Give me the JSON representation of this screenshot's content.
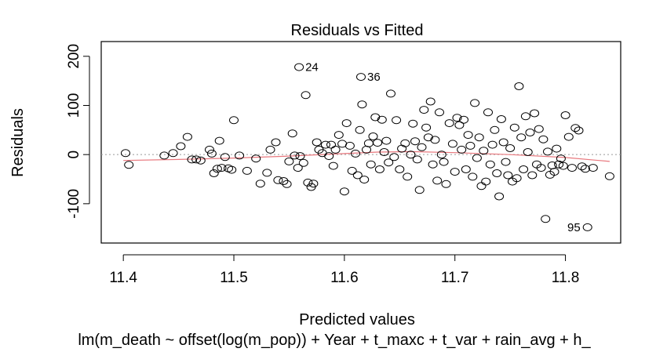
{
  "chart_data": {
    "type": "scatter",
    "title": "Residuals vs Fitted",
    "xlabel": "Predicted values",
    "ylabel": "Residuals",
    "subtitle": "lm(m_death ~ offset(log(m_pop)) + Year + t_maxc + t_var + rain_avg + h_",
    "xlim": [
      11.38,
      11.85
    ],
    "ylim": [
      -180,
      230
    ],
    "x_ticks": [
      "11.4",
      "11.5",
      "11.6",
      "11.7",
      "11.8"
    ],
    "x_tick_values": [
      11.4,
      11.5,
      11.6,
      11.7,
      11.8
    ],
    "y_ticks": [
      "-100",
      "0",
      "100",
      "200"
    ],
    "y_tick_values": [
      -100,
      0,
      100,
      200
    ],
    "reference_line": 0,
    "smoother": {
      "color": "#e8777d",
      "x": [
        11.4,
        11.45,
        11.5,
        11.55,
        11.6,
        11.63,
        11.66,
        11.7,
        11.75,
        11.8,
        11.84
      ],
      "y": [
        -12,
        -10,
        -7,
        -3,
        2,
        5,
        6,
        4,
        0,
        -6,
        -14
      ]
    },
    "labeled_points": [
      {
        "label": "24",
        "x": 11.559,
        "y": 178
      },
      {
        "label": "36",
        "x": 11.615,
        "y": 158
      },
      {
        "label": "95",
        "x": 11.82,
        "y": -148
      }
    ],
    "points": [
      [
        11.402,
        3
      ],
      [
        11.405,
        -21
      ],
      [
        11.437,
        -2
      ],
      [
        11.445,
        3
      ],
      [
        11.452,
        17
      ],
      [
        11.458,
        36
      ],
      [
        11.462,
        -10
      ],
      [
        11.466,
        -10
      ],
      [
        11.47,
        -12
      ],
      [
        11.478,
        10
      ],
      [
        11.48,
        2
      ],
      [
        11.482,
        -38
      ],
      [
        11.485,
        -29
      ],
      [
        11.487,
        28
      ],
      [
        11.489,
        -27
      ],
      [
        11.492,
        -5
      ],
      [
        11.495,
        -28
      ],
      [
        11.498,
        -31
      ],
      [
        11.5,
        70
      ],
      [
        11.505,
        -2
      ],
      [
        11.512,
        -33
      ],
      [
        11.52,
        -8
      ],
      [
        11.524,
        -59
      ],
      [
        11.53,
        -37
      ],
      [
        11.533,
        10
      ],
      [
        11.538,
        25
      ],
      [
        11.54,
        -52
      ],
      [
        11.545,
        -54
      ],
      [
        11.548,
        -60
      ],
      [
        11.55,
        -14
      ],
      [
        11.553,
        43
      ],
      [
        11.555,
        -2
      ],
      [
        11.558,
        -27
      ],
      [
        11.56,
        -3
      ],
      [
        11.563,
        -17
      ],
      [
        11.565,
        121
      ],
      [
        11.567,
        -57
      ],
      [
        11.57,
        -66
      ],
      [
        11.572,
        -59
      ],
      [
        11.575,
        25
      ],
      [
        11.577,
        10
      ],
      [
        11.58,
        3
      ],
      [
        11.583,
        20
      ],
      [
        11.586,
        -3
      ],
      [
        11.588,
        20
      ],
      [
        11.59,
        -23
      ],
      [
        11.592,
        10
      ],
      [
        11.595,
        40
      ],
      [
        11.598,
        22
      ],
      [
        11.6,
        -75
      ],
      [
        11.602,
        64
      ],
      [
        11.605,
        18
      ],
      [
        11.607,
        -33
      ],
      [
        11.61,
        2
      ],
      [
        11.612,
        -42
      ],
      [
        11.614,
        50
      ],
      [
        11.616,
        102
      ],
      [
        11.618,
        -51
      ],
      [
        11.62,
        10
      ],
      [
        11.622,
        23
      ],
      [
        11.624,
        -20
      ],
      [
        11.626,
        37
      ],
      [
        11.628,
        76
      ],
      [
        11.63,
        24
      ],
      [
        11.632,
        -30
      ],
      [
        11.634,
        71
      ],
      [
        11.636,
        5
      ],
      [
        11.638,
        28
      ],
      [
        11.64,
        -16
      ],
      [
        11.642,
        124
      ],
      [
        11.645,
        -5
      ],
      [
        11.647,
        70
      ],
      [
        11.65,
        -30
      ],
      [
        11.652,
        12
      ],
      [
        11.655,
        23
      ],
      [
        11.657,
        -45
      ],
      [
        11.66,
        0
      ],
      [
        11.662,
        63
      ],
      [
        11.664,
        27
      ],
      [
        11.666,
        -10
      ],
      [
        11.668,
        -72
      ],
      [
        11.67,
        15
      ],
      [
        11.672,
        91
      ],
      [
        11.674,
        55
      ],
      [
        11.676,
        35
      ],
      [
        11.678,
        108
      ],
      [
        11.68,
        -20
      ],
      [
        11.682,
        30
      ],
      [
        11.684,
        -53
      ],
      [
        11.686,
        86
      ],
      [
        11.688,
        0
      ],
      [
        11.69,
        -15
      ],
      [
        11.692,
        -60
      ],
      [
        11.695,
        64
      ],
      [
        11.698,
        22
      ],
      [
        11.7,
        -35
      ],
      [
        11.702,
        75
      ],
      [
        11.704,
        60
      ],
      [
        11.706,
        10
      ],
      [
        11.708,
        71
      ],
      [
        11.71,
        -30
      ],
      [
        11.712,
        40
      ],
      [
        11.714,
        18
      ],
      [
        11.716,
        -45
      ],
      [
        11.718,
        105
      ],
      [
        11.72,
        -7
      ],
      [
        11.722,
        35
      ],
      [
        11.724,
        -64
      ],
      [
        11.726,
        8
      ],
      [
        11.728,
        -55
      ],
      [
        11.73,
        86
      ],
      [
        11.732,
        -20
      ],
      [
        11.734,
        20
      ],
      [
        11.736,
        50
      ],
      [
        11.738,
        -38
      ],
      [
        11.74,
        -85
      ],
      [
        11.742,
        72
      ],
      [
        11.744,
        25
      ],
      [
        11.746,
        -15
      ],
      [
        11.748,
        -42
      ],
      [
        11.75,
        13
      ],
      [
        11.752,
        -55
      ],
      [
        11.754,
        55
      ],
      [
        11.756,
        -48
      ],
      [
        11.758,
        139
      ],
      [
        11.76,
        35
      ],
      [
        11.762,
        -30
      ],
      [
        11.764,
        78
      ],
      [
        11.766,
        5
      ],
      [
        11.768,
        45
      ],
      [
        11.77,
        -42
      ],
      [
        11.772,
        84
      ],
      [
        11.774,
        -20
      ],
      [
        11.776,
        52
      ],
      [
        11.778,
        -27
      ],
      [
        11.78,
        31
      ],
      [
        11.782,
        -131
      ],
      [
        11.784,
        6
      ],
      [
        11.786,
        -41
      ],
      [
        11.788,
        -22
      ],
      [
        11.79,
        -35
      ],
      [
        11.792,
        12
      ],
      [
        11.794,
        -20
      ],
      [
        11.796,
        -8
      ],
      [
        11.798,
        -23
      ],
      [
        11.8,
        80
      ],
      [
        11.803,
        36
      ],
      [
        11.806,
        -27
      ],
      [
        11.809,
        54
      ],
      [
        11.812,
        49
      ],
      [
        11.815,
        -24
      ],
      [
        11.818,
        -29
      ],
      [
        11.825,
        -27
      ],
      [
        11.84,
        -44
      ]
    ]
  }
}
